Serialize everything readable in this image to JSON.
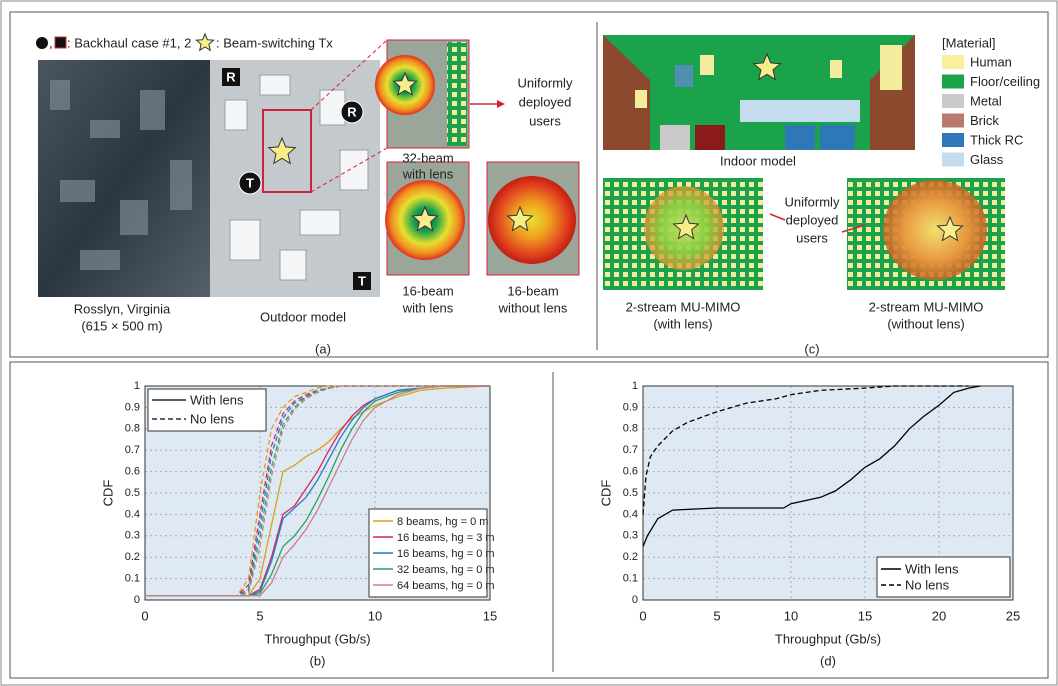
{
  "panel_a": {
    "legend_sep": ",",
    "legend_backhaul": ": Backhaul case #1, 2",
    "legend_tx": ": Beam-switching Tx",
    "markers": [
      "R",
      "R",
      "T",
      "T"
    ],
    "map_label": [
      "Rosslyn, Virginia",
      "(615 × 500 m)"
    ],
    "outdoor_label": "Outdoor model",
    "beam_labels": [
      [
        "32-beam",
        "with lens"
      ],
      [
        "16-beam",
        "with lens"
      ],
      [
        "16-beam",
        "without lens"
      ]
    ],
    "users_label": [
      "Uniformly",
      "deployed",
      "users"
    ],
    "caption": "(a)"
  },
  "panel_c": {
    "indoor_label": "Indoor model",
    "material_title": "[Material]",
    "materials": [
      {
        "name": "Human",
        "color": "#f9ef9c"
      },
      {
        "name": "Floor/ceiling",
        "color": "#1aa34a"
      },
      {
        "name": "Metal",
        "color": "#c9c9c9"
      },
      {
        "name": "Brick",
        "color": "#b97a6e"
      },
      {
        "name": "Thick RC",
        "color": "#2f78b7"
      },
      {
        "name": "Glass",
        "color": "#c5dcef"
      }
    ],
    "users_label": [
      "Uniformly",
      "deployed",
      "users"
    ],
    "mimo_labels": [
      [
        "2-stream MU-MIMO",
        "(with lens)"
      ],
      [
        "2-stream MU-MIMO",
        "(without lens)"
      ]
    ],
    "caption": "(c)"
  },
  "chart_data": [
    {
      "type": "line",
      "caption": "(b)",
      "xlabel": "Throughput (Gb/s)",
      "ylabel": "CDF",
      "xlim": [
        0,
        15
      ],
      "xticks": [
        0,
        5,
        10,
        15
      ],
      "ylim": [
        0,
        1
      ],
      "yticks": [
        0,
        0.1,
        0.2,
        0.3,
        0.4,
        0.5,
        0.6,
        0.7,
        0.8,
        0.9,
        1
      ],
      "grid": true,
      "legend": "lower right",
      "style_legend": [
        "With lens",
        "No lens"
      ],
      "style_legend_position": "upper left",
      "x": [
        0,
        4,
        4.5,
        5,
        5.5,
        6,
        6.5,
        7,
        7.5,
        8,
        8.5,
        9,
        9.5,
        10,
        11,
        12,
        13,
        15
      ],
      "series": [
        {
          "name": "8 beams, hg = 0 m",
          "color": "#d9a21b",
          "with_lens": [
            0.02,
            0.02,
            0.02,
            0.1,
            0.35,
            0.6,
            0.63,
            0.67,
            0.7,
            0.74,
            0.8,
            0.85,
            0.88,
            0.91,
            0.95,
            0.98,
            0.99,
            1
          ],
          "no_lens": [
            0.02,
            0.02,
            0.1,
            0.5,
            0.8,
            0.9,
            0.95,
            0.97,
            0.99,
            1,
            1,
            1,
            1,
            1,
            1,
            1,
            1,
            1
          ]
        },
        {
          "name": "16 beams, hg = 3 m",
          "color": "#e0245e",
          "with_lens": [
            0.02,
            0.02,
            0.02,
            0.05,
            0.2,
            0.4,
            0.44,
            0.52,
            0.6,
            0.7,
            0.79,
            0.86,
            0.91,
            0.94,
            0.98,
            0.99,
            1,
            1
          ],
          "no_lens": [
            0.02,
            0.02,
            0.07,
            0.4,
            0.72,
            0.87,
            0.93,
            0.96,
            0.98,
            0.99,
            1,
            1,
            1,
            1,
            1,
            1,
            1,
            1
          ]
        },
        {
          "name": "16 beams, hg = 0 m",
          "color": "#1f7fc4",
          "with_lens": [
            0.02,
            0.02,
            0.02,
            0.04,
            0.18,
            0.38,
            0.43,
            0.48,
            0.56,
            0.66,
            0.76,
            0.84,
            0.9,
            0.94,
            0.98,
            0.99,
            1,
            1
          ],
          "no_lens": [
            0.02,
            0.02,
            0.05,
            0.35,
            0.68,
            0.85,
            0.92,
            0.95,
            0.98,
            0.99,
            1,
            1,
            1,
            1,
            1,
            1,
            1,
            1
          ]
        },
        {
          "name": "32 beams, hg = 0 m",
          "color": "#2ca25f",
          "with_lens": [
            0.02,
            0.02,
            0.02,
            0.03,
            0.12,
            0.25,
            0.3,
            0.37,
            0.47,
            0.58,
            0.7,
            0.8,
            0.88,
            0.93,
            0.97,
            0.99,
            1,
            1
          ],
          "no_lens": [
            0.02,
            0.02,
            0.04,
            0.3,
            0.62,
            0.82,
            0.9,
            0.95,
            0.97,
            0.99,
            1,
            1,
            1,
            1,
            1,
            1,
            1,
            1
          ]
        },
        {
          "name": "64 beams, hg = 0 m",
          "color": "#c98080",
          "with_lens": [
            0.02,
            0.02,
            0.02,
            0.02,
            0.08,
            0.2,
            0.26,
            0.33,
            0.42,
            0.53,
            0.64,
            0.75,
            0.84,
            0.9,
            0.96,
            0.99,
            1,
            1
          ],
          "no_lens": [
            0.02,
            0.02,
            0.03,
            0.25,
            0.58,
            0.8,
            0.89,
            0.94,
            0.97,
            0.99,
            1,
            1,
            1,
            1,
            1,
            1,
            1,
            1
          ]
        }
      ]
    },
    {
      "type": "line",
      "caption": "(d)",
      "xlabel": "Throughput (Gb/s)",
      "ylabel": "CDF",
      "xlim": [
        0,
        25
      ],
      "xticks": [
        0,
        5,
        10,
        15,
        20,
        25
      ],
      "ylim": [
        0,
        1
      ],
      "yticks": [
        0,
        0.1,
        0.2,
        0.3,
        0.4,
        0.5,
        0.6,
        0.7,
        0.8,
        0.9,
        1
      ],
      "grid": true,
      "legend": "lower right",
      "series": [
        {
          "name": "With lens",
          "color": "#000000",
          "dashed": false,
          "x": [
            0,
            0.3,
            1,
            2,
            5,
            9.5,
            10,
            12,
            13,
            14,
            15,
            16,
            17,
            18,
            19,
            20,
            21,
            22,
            22.8
          ],
          "values": [
            0.25,
            0.3,
            0.38,
            0.42,
            0.43,
            0.43,
            0.45,
            0.48,
            0.51,
            0.56,
            0.62,
            0.66,
            0.72,
            0.8,
            0.86,
            0.91,
            0.97,
            0.99,
            1
          ]
        },
        {
          "name": "No lens",
          "color": "#000000",
          "dashed": true,
          "x": [
            0,
            0.2,
            0.5,
            1,
            2,
            3,
            5,
            7,
            9,
            10,
            12,
            15,
            17,
            22
          ],
          "values": [
            0.4,
            0.58,
            0.67,
            0.72,
            0.79,
            0.83,
            0.88,
            0.92,
            0.94,
            0.96,
            0.98,
            0.99,
            1,
            1
          ]
        }
      ]
    }
  ]
}
